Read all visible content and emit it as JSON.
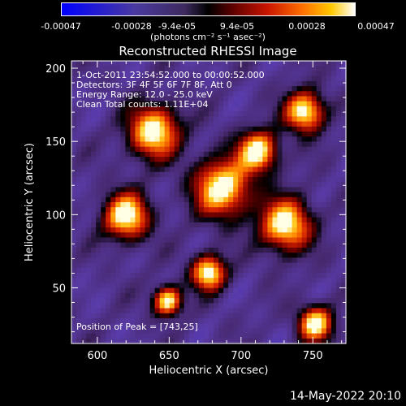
{
  "colorbar": {
    "tick_labels": [
      "-0.00047",
      "-0.00028",
      "-9.4e-05",
      "9.4e-05",
      "0.00028",
      "0.00047"
    ],
    "units": "(photons cm⁻² s⁻¹ asec⁻²)"
  },
  "chart_data": {
    "type": "heatmap",
    "title": "Reconstructed RHESSI Image",
    "xlabel": "Heliocentric X (arcsec)",
    "ylabel": "Heliocentric Y (arcsec)",
    "xlim": [
      582,
      773
    ],
    "ylim": [
      12,
      205
    ],
    "xticks": [
      "600",
      "650",
      "700",
      "750"
    ],
    "yticks": [
      "50",
      "100",
      "150",
      "200"
    ],
    "colorbar_range": [
      -0.00047,
      0.00047
    ],
    "peak_position": [
      743,
      25
    ],
    "info_lines": [
      "1-Oct-2011 23:54:52.000 to 00:00:52.000",
      "Detectors: 3F 4F 5F 6F 7F 8F, Att 0",
      "Energy Range: 12.0 - 25.0 keV",
      "Clean     Total counts: 1.11E+04"
    ],
    "peak_label": "Position of Peak = [743,25]"
  },
  "footer_date": "14-May-2022 20:10"
}
